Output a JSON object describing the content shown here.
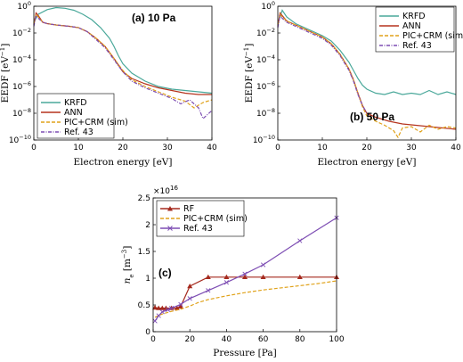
{
  "figure": {
    "panel_a": {
      "title": "(a) 10 Pa",
      "xlabel": "Electron energy [eV]",
      "ylabel": "EEDF [eV^-1]",
      "ylabel_main": "EEDF [eV",
      "ylabel_exp": "−1",
      "ylabel_close": "]",
      "legend": [
        "KRFD",
        "ANN",
        "PIC+CRM (sim)",
        "Ref. 43"
      ]
    },
    "panel_b": {
      "title": "(b) 50 Pa",
      "xlabel": "Electron energy [eV]",
      "ylabel": "EEDF [eV^-1]",
      "ylabel_main": "EEDF [eV",
      "ylabel_exp": "−1",
      "ylabel_close": "]",
      "legend": [
        "KRFD",
        "ANN",
        "PIC+CRM (sim)",
        "Ref. 43"
      ]
    },
    "panel_c": {
      "title": "(c)",
      "xlabel": "Pressure [Pa]",
      "ylabel_main": "n",
      "ylabel_sub": "e",
      "ylabel_unit": " [m",
      "ylabel_exp": "−3",
      "ylabel_close": "]",
      "scale_base": "×10",
      "scale_exp": "16",
      "legend": [
        "RF",
        "PIC+CRM (sim)",
        "Ref. 43"
      ]
    }
  },
  "colors": {
    "krfd": "#4aa89a",
    "ann": "#b5341e",
    "pic": "#e0a21a",
    "ref": "#7d4db3",
    "rf": "#a52a1e"
  },
  "chart_data": [
    {
      "type": "line",
      "panel": "a",
      "xlim": [
        0,
        40
      ],
      "ylim_log10": [
        -10,
        0
      ],
      "yscale": "log",
      "x_ticks": [
        0,
        10,
        20,
        30,
        40
      ],
      "y_ticks_labels": [
        "10^-10",
        "10^-8",
        "10^-6",
        "10^-4",
        "10^-2",
        "10^0"
      ],
      "legend_position": "bottom-left",
      "series": [
        {
          "name": "KRFD",
          "x": [
            0,
            1,
            3,
            5,
            7,
            9,
            11,
            13,
            15,
            17,
            18,
            19,
            20,
            22,
            25,
            28,
            31,
            34,
            37,
            40
          ],
          "y_log10": [
            -1.2,
            -0.6,
            -0.25,
            -0.1,
            -0.15,
            -0.3,
            -0.6,
            -1.0,
            -1.6,
            -2.4,
            -3.0,
            -3.7,
            -4.3,
            -5.0,
            -5.6,
            -6.0,
            -6.2,
            -6.3,
            -6.4,
            -6.5
          ]
        },
        {
          "name": "ANN",
          "x": [
            0,
            0.5,
            1,
            2,
            3,
            5,
            8,
            10,
            12,
            14,
            16,
            18,
            19,
            20,
            22,
            25,
            28,
            31,
            34,
            37,
            40
          ],
          "y_log10": [
            -1.4,
            -0.5,
            -0.7,
            -1.2,
            -1.3,
            -1.4,
            -1.5,
            -1.6,
            -1.9,
            -2.4,
            -3.0,
            -3.9,
            -4.4,
            -4.9,
            -5.4,
            -5.8,
            -6.1,
            -6.3,
            -6.5,
            -6.6,
            -6.6
          ]
        },
        {
          "name": "PIC+CRM (sim)",
          "x": [
            0,
            0.5,
            1,
            2,
            3,
            5,
            8,
            10,
            12,
            14,
            16,
            18,
            20,
            22,
            25,
            28,
            31,
            34,
            36,
            38,
            40
          ],
          "y_log10": [
            -1.3,
            -0.6,
            -0.8,
            -1.2,
            -1.3,
            -1.4,
            -1.5,
            -1.6,
            -1.9,
            -2.4,
            -3.0,
            -3.9,
            -4.8,
            -5.5,
            -6.0,
            -6.4,
            -6.8,
            -7.1,
            -7.6,
            -7.2,
            -7.0
          ]
        },
        {
          "name": "Ref. 43",
          "x": [
            0,
            0.5,
            1,
            2,
            3,
            5,
            8,
            10,
            12,
            14,
            16,
            18,
            20,
            22,
            25,
            28,
            31,
            33,
            35,
            37,
            38,
            40
          ],
          "y_log10": [
            -1.5,
            -0.7,
            -0.9,
            -1.2,
            -1.3,
            -1.4,
            -1.5,
            -1.6,
            -1.9,
            -2.5,
            -3.1,
            -4.0,
            -4.9,
            -5.6,
            -6.1,
            -6.5,
            -6.9,
            -7.3,
            -7.0,
            -7.6,
            -8.4,
            -7.8
          ]
        }
      ]
    },
    {
      "type": "line",
      "panel": "b",
      "xlim": [
        0,
        40
      ],
      "ylim_log10": [
        -10,
        0
      ],
      "yscale": "log",
      "x_ticks": [
        0,
        10,
        20,
        30,
        40
      ],
      "y_ticks_labels": [
        "10^-10",
        "10^-8",
        "10^-6",
        "10^-4",
        "10^-2",
        "10^0"
      ],
      "legend_position": "top-right",
      "series": [
        {
          "name": "KRFD",
          "x": [
            0,
            1,
            2,
            4,
            6,
            8,
            10,
            12,
            14,
            16,
            17,
            18,
            19,
            20,
            22,
            24,
            26,
            28,
            30,
            32,
            34,
            36,
            38,
            40
          ],
          "y_log10": [
            -1.3,
            -0.3,
            -0.8,
            -1.3,
            -1.6,
            -1.9,
            -2.2,
            -2.6,
            -3.3,
            -4.2,
            -4.8,
            -5.4,
            -5.9,
            -6.2,
            -6.5,
            -6.6,
            -6.4,
            -6.6,
            -6.5,
            -6.6,
            -6.3,
            -6.6,
            -6.4,
            -6.6
          ]
        },
        {
          "name": "ANN",
          "x": [
            0,
            0.5,
            1,
            2,
            4,
            6,
            8,
            10,
            12,
            14,
            16,
            17,
            18,
            19,
            20,
            22,
            25,
            28,
            31,
            34,
            37,
            40
          ],
          "y_log10": [
            -1.5,
            -0.5,
            -0.7,
            -1.1,
            -1.4,
            -1.7,
            -2.0,
            -2.3,
            -2.8,
            -3.6,
            -4.7,
            -5.5,
            -6.5,
            -7.4,
            -8.0,
            -8.3,
            -8.6,
            -8.8,
            -8.9,
            -9.0,
            -9.1,
            -9.2
          ]
        },
        {
          "name": "PIC+CRM (sim)",
          "x": [
            0,
            0.5,
            1,
            2,
            4,
            6,
            8,
            10,
            12,
            14,
            16,
            17,
            18,
            19,
            20,
            22,
            24,
            26,
            27,
            28,
            30,
            32,
            34,
            36,
            38,
            40
          ],
          "y_log10": [
            -1.4,
            -0.6,
            -0.8,
            -1.1,
            -1.4,
            -1.7,
            -2.0,
            -2.3,
            -2.8,
            -3.6,
            -4.7,
            -5.5,
            -6.5,
            -7.5,
            -8.2,
            -8.6,
            -8.9,
            -9.3,
            -9.8,
            -9.1,
            -9.0,
            -9.4,
            -8.9,
            -9.2,
            -9.0,
            -9.1
          ]
        },
        {
          "name": "Ref. 43",
          "x": [
            0,
            0.5,
            1,
            2,
            4,
            6,
            8,
            10,
            12,
            14,
            16,
            17,
            18,
            19,
            20
          ],
          "y_log10": [
            -1.6,
            -0.7,
            -0.9,
            -1.2,
            -1.5,
            -1.8,
            -2.1,
            -2.4,
            -2.9,
            -3.7,
            -4.8,
            -5.6,
            -6.6,
            -7.4,
            -8.0
          ]
        }
      ]
    },
    {
      "type": "line",
      "panel": "c",
      "xlim": [
        0,
        100
      ],
      "ylim": [
        0,
        2.5
      ],
      "y_multiplier": "1e16",
      "x_ticks": [
        0,
        20,
        40,
        60,
        80,
        100
      ],
      "y_ticks": [
        0,
        0.5,
        1,
        1.5,
        2,
        2.5
      ],
      "legend_position": "top-left",
      "series": [
        {
          "name": "RF",
          "marker": "triangle",
          "x": [
            1,
            3,
            5,
            7,
            10,
            13,
            15,
            20,
            30,
            40,
            50,
            60,
            80,
            100
          ],
          "y": [
            0.45,
            0.44,
            0.44,
            0.44,
            0.44,
            0.44,
            0.47,
            0.85,
            1.02,
            1.02,
            1.02,
            1.02,
            1.02,
            1.02
          ]
        },
        {
          "name": "PIC+CRM (sim)",
          "marker": "none",
          "x": [
            1,
            5,
            10,
            15,
            20,
            25,
            30,
            40,
            50,
            60,
            70,
            80,
            90,
            100
          ],
          "y": [
            0.27,
            0.33,
            0.38,
            0.42,
            0.48,
            0.55,
            0.6,
            0.67,
            0.73,
            0.78,
            0.82,
            0.86,
            0.9,
            0.95
          ]
        },
        {
          "name": "Ref. 43",
          "marker": "x",
          "x": [
            1,
            3,
            5,
            8,
            10,
            15,
            20,
            30,
            40,
            50,
            60,
            80,
            100
          ],
          "y": [
            0.2,
            0.3,
            0.37,
            0.41,
            0.44,
            0.51,
            0.62,
            0.77,
            0.92,
            1.08,
            1.25,
            1.7,
            2.13
          ]
        }
      ]
    }
  ]
}
